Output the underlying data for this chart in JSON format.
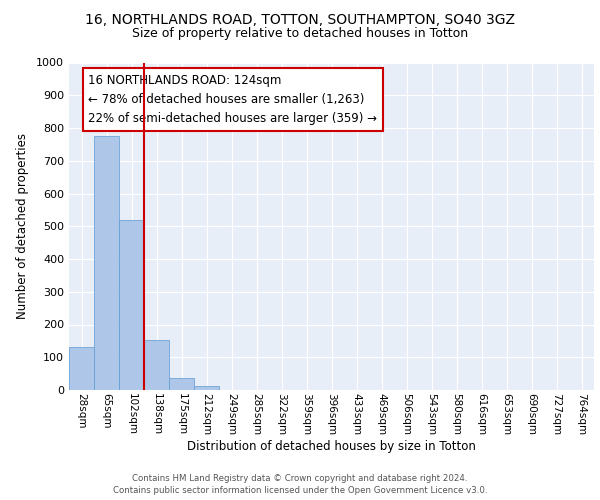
{
  "title1": "16, NORTHLANDS ROAD, TOTTON, SOUTHAMPTON, SO40 3GZ",
  "title2": "Size of property relative to detached houses in Totton",
  "xlabel": "Distribution of detached houses by size in Totton",
  "ylabel": "Number of detached properties",
  "categories": [
    "28sqm",
    "65sqm",
    "102sqm",
    "138sqm",
    "175sqm",
    "212sqm",
    "249sqm",
    "285sqm",
    "322sqm",
    "359sqm",
    "396sqm",
    "433sqm",
    "469sqm",
    "506sqm",
    "543sqm",
    "580sqm",
    "616sqm",
    "653sqm",
    "690sqm",
    "727sqm",
    "764sqm"
  ],
  "values": [
    130,
    775,
    520,
    153,
    37,
    12,
    0,
    0,
    0,
    0,
    0,
    0,
    0,
    0,
    0,
    0,
    0,
    0,
    0,
    0,
    0
  ],
  "bar_color": "#aec6e8",
  "bar_edge_color": "#5b9bd5",
  "vline_color": "#cc0000",
  "annotation_box_text": "16 NORTHLANDS ROAD: 124sqm\n← 78% of detached houses are smaller (1,263)\n22% of semi-detached houses are larger (359) →",
  "annotation_fontsize": 8.5,
  "ylim": [
    0,
    1000
  ],
  "yticks": [
    0,
    100,
    200,
    300,
    400,
    500,
    600,
    700,
    800,
    900,
    1000
  ],
  "background_color": "#e8eef8",
  "footer_text": "Contains HM Land Registry data © Crown copyright and database right 2024.\nContains public sector information licensed under the Open Government Licence v3.0.",
  "title1_fontsize": 10,
  "title2_fontsize": 9,
  "xlabel_fontsize": 8.5,
  "ylabel_fontsize": 8.5
}
